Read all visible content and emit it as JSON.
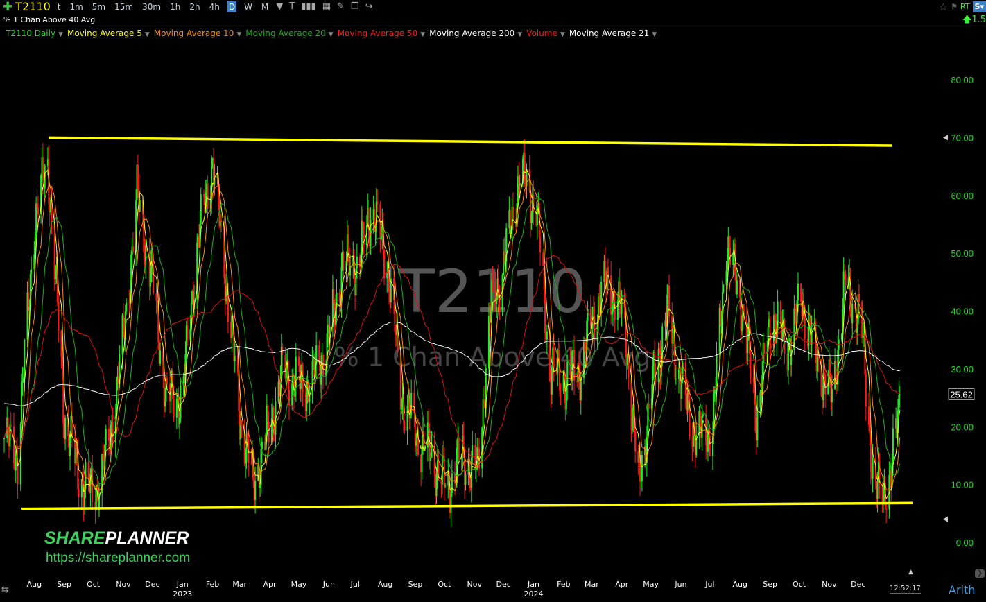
{
  "toolbar": {
    "symbol": "T2110",
    "timeframes": [
      "t",
      "1m",
      "5m",
      "15m",
      "30m",
      "1h",
      "2h",
      "4h",
      "D",
      "W",
      "M"
    ],
    "active": "D",
    "rt": "RT",
    "change": "1.5"
  },
  "subtitle": "% 1 Chan Above 40 Avg",
  "legend": [
    {
      "label": "T2110 Daily",
      "color": "#22dd22"
    },
    {
      "label": "Moving Average 5",
      "color": "#ffff00"
    },
    {
      "label": "Moving Average 10",
      "color": "#ff8c00"
    },
    {
      "label": "Moving Average 20",
      "color": "#1cb01c"
    },
    {
      "label": "Moving Average 50",
      "color": "#ff1a1a"
    },
    {
      "label": "Moving Average 200",
      "color": "#ffffff"
    },
    {
      "label": "Volume",
      "color": "#ff1a1a"
    },
    {
      "label": "Moving Average 21",
      "color": "#ffffff"
    }
  ],
  "watermark": {
    "symbol": "T2110",
    "name": "% 1 Chan Above 40 Avg"
  },
  "brand": {
    "logo_green": "SHARE",
    "logo_white": "PLANNER",
    "url": "https://shareplanner.com"
  },
  "footer": {
    "clock": "12:52:17",
    "scale": "Arith"
  },
  "chart_data": {
    "type": "candlestick",
    "ylim": [
      0,
      85
    ],
    "yticks": [
      "0.00",
      "10.00",
      "20.00",
      "30.00",
      "40.00",
      "50.00",
      "60.00",
      "70.00",
      "80.00"
    ],
    "last_value": "25.62",
    "up_color": "#22ee22",
    "down_color": "#ff1a1a",
    "xticks": [
      {
        "date": "2022-08-01",
        "label": "Aug"
      },
      {
        "date": "2022-09-01",
        "label": "Sep"
      },
      {
        "date": "2022-10-01",
        "label": "Oct"
      },
      {
        "date": "2022-11-01",
        "label": "Nov"
      },
      {
        "date": "2022-12-01",
        "label": "Dec"
      },
      {
        "date": "2023-01-01",
        "label": "Jan",
        "year": "2023"
      },
      {
        "date": "2023-02-01",
        "label": "Feb"
      },
      {
        "date": "2023-03-01",
        "label": "Mar"
      },
      {
        "date": "2023-04-01",
        "label": "Apr"
      },
      {
        "date": "2023-05-01",
        "label": "May"
      },
      {
        "date": "2023-06-01",
        "label": "Jun"
      },
      {
        "date": "2023-07-01",
        "label": "Jul"
      },
      {
        "date": "2023-08-01",
        "label": "Aug"
      },
      {
        "date": "2023-09-01",
        "label": "Sep"
      },
      {
        "date": "2023-10-01",
        "label": "Oct"
      },
      {
        "date": "2023-11-01",
        "label": "Nov"
      },
      {
        "date": "2023-12-01",
        "label": "Dec"
      },
      {
        "date": "2024-01-01",
        "label": "Jan",
        "year": "2024"
      },
      {
        "date": "2024-02-01",
        "label": "Feb"
      },
      {
        "date": "2024-03-01",
        "label": "Mar"
      },
      {
        "date": "2024-04-01",
        "label": "Apr"
      },
      {
        "date": "2024-05-01",
        "label": "May"
      },
      {
        "date": "2024-06-01",
        "label": "Jun"
      },
      {
        "date": "2024-07-01",
        "label": "Jul"
      },
      {
        "date": "2024-08-01",
        "label": "Aug"
      },
      {
        "date": "2024-09-01",
        "label": "Sep"
      },
      {
        "date": "2024-10-01",
        "label": "Oct"
      },
      {
        "date": "2024-11-01",
        "label": "Nov"
      },
      {
        "date": "2024-12-01",
        "label": "Dec"
      }
    ],
    "closes": [
      [
        "2022-07-01",
        18
      ],
      [
        "2022-07-15",
        15
      ],
      [
        "2022-08-01",
        55
      ],
      [
        "2022-08-15",
        66
      ],
      [
        "2022-09-01",
        22
      ],
      [
        "2022-09-15",
        12
      ],
      [
        "2022-10-01",
        8
      ],
      [
        "2022-10-15",
        15
      ],
      [
        "2022-11-01",
        35
      ],
      [
        "2022-11-15",
        60
      ],
      [
        "2022-12-01",
        45
      ],
      [
        "2022-12-15",
        25
      ],
      [
        "2023-01-01",
        25
      ],
      [
        "2023-01-15",
        50
      ],
      [
        "2023-02-01",
        66
      ],
      [
        "2023-02-15",
        45
      ],
      [
        "2023-03-01",
        22
      ],
      [
        "2023-03-15",
        10
      ],
      [
        "2023-04-01",
        20
      ],
      [
        "2023-04-15",
        30
      ],
      [
        "2023-05-01",
        27
      ],
      [
        "2023-05-15",
        28
      ],
      [
        "2023-06-01",
        35
      ],
      [
        "2023-06-15",
        48
      ],
      [
        "2023-07-01",
        48
      ],
      [
        "2023-07-15",
        58
      ],
      [
        "2023-08-01",
        48
      ],
      [
        "2023-08-15",
        25
      ],
      [
        "2023-09-01",
        18
      ],
      [
        "2023-09-15",
        15
      ],
      [
        "2023-10-01",
        9
      ],
      [
        "2023-10-15",
        15
      ],
      [
        "2023-11-01",
        12
      ],
      [
        "2023-11-15",
        40
      ],
      [
        "2023-12-01",
        50
      ],
      [
        "2023-12-15",
        64
      ],
      [
        "2024-01-01",
        58
      ],
      [
        "2024-01-15",
        30
      ],
      [
        "2024-02-01",
        28
      ],
      [
        "2024-02-15",
        30
      ],
      [
        "2024-03-01",
        40
      ],
      [
        "2024-03-15",
        45
      ],
      [
        "2024-04-01",
        38
      ],
      [
        "2024-04-15",
        10
      ],
      [
        "2024-05-01",
        28
      ],
      [
        "2024-05-15",
        40
      ],
      [
        "2024-06-01",
        25
      ],
      [
        "2024-06-15",
        18
      ],
      [
        "2024-07-01",
        20
      ],
      [
        "2024-07-15",
        52
      ],
      [
        "2024-08-01",
        40
      ],
      [
        "2024-08-15",
        22
      ],
      [
        "2024-09-01",
        40
      ],
      [
        "2024-09-15",
        33
      ],
      [
        "2024-10-01",
        42
      ],
      [
        "2024-10-15",
        32
      ],
      [
        "2024-11-01",
        25
      ],
      [
        "2024-11-15",
        45
      ],
      [
        "2024-12-01",
        38
      ],
      [
        "2024-12-15",
        8
      ],
      [
        "2025-01-01",
        11
      ],
      [
        "2025-01-10",
        25.62
      ]
    ],
    "moving_averages": [
      {
        "period": 5,
        "color": "#ffff00"
      },
      {
        "period": 10,
        "color": "#ff8c00"
      },
      {
        "period": 20,
        "color": "#1cb01c"
      },
      {
        "period": 50,
        "color": "#e01010"
      },
      {
        "period": 200,
        "color": "#ffffff"
      }
    ],
    "trendlines": [
      {
        "from": [
          "2022-08-16",
          70.0
        ],
        "to": [
          "2025-01-02",
          68.6
        ],
        "color": "#ffff00"
      },
      {
        "from": [
          "2022-07-19",
          5.8
        ],
        "to": [
          "2025-01-23",
          6.8
        ],
        "color": "#ffff00"
      }
    ]
  }
}
